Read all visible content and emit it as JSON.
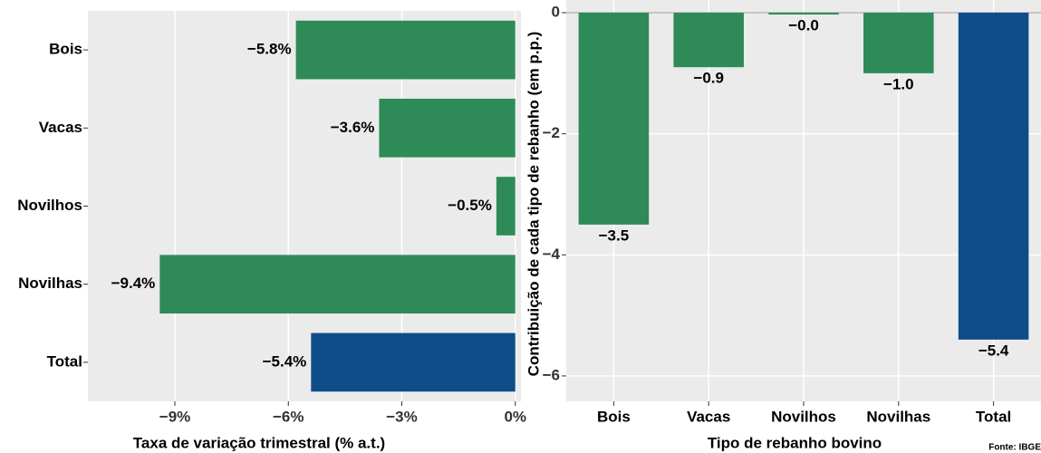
{
  "chart_data": [
    {
      "type": "barh",
      "categories": [
        "Bois",
        "Vacas",
        "Novilhos",
        "Novilhas",
        "Total"
      ],
      "values": [
        -5.8,
        -3.6,
        -0.5,
        -9.4,
        -5.4
      ],
      "value_labels": [
        "−5.8%",
        "−3.6%",
        "−0.5%",
        "−9.4%",
        "−5.4%"
      ],
      "colors": [
        "#2e8b57",
        "#2e8b57",
        "#2e8b57",
        "#2e8b57",
        "#0f4c8a"
      ],
      "xlabel": "Taxa de variação trimestral (% a.t.)",
      "xlim": [
        -11.3,
        0.15
      ],
      "xticks": [
        {
          "value": -9,
          "label": "−9%"
        },
        {
          "value": -6,
          "label": "−6%"
        },
        {
          "value": -3,
          "label": "−3%"
        },
        {
          "value": 0,
          "label": "0%"
        }
      ],
      "grid": true
    },
    {
      "type": "bar",
      "categories": [
        "Bois",
        "Vacas",
        "Novilhos",
        "Novilhas",
        "Total"
      ],
      "values": [
        -3.5,
        -0.9,
        -0.03,
        -1.0,
        -5.4
      ],
      "value_labels": [
        "−3.5",
        "−0.9",
        "−0.0",
        "−1.0",
        "−5.4"
      ],
      "colors": [
        "#2e8b57",
        "#2e8b57",
        "#2e8b57",
        "#2e8b57",
        "#0f4c8a"
      ],
      "xlabel": "Tipo de rebanho bovino",
      "ylabel": "Contribuição de cada tipo de rebanho (em p.p.)",
      "ylim": [
        -6.42,
        0.21
      ],
      "yticks": [
        0,
        {
          "value": -2,
          "label": "−2"
        },
        {
          "value": -4,
          "label": "−4"
        },
        {
          "value": -6,
          "label": "−6"
        }
      ],
      "grid": true,
      "annotation": "Fonte: IBGE"
    }
  ]
}
